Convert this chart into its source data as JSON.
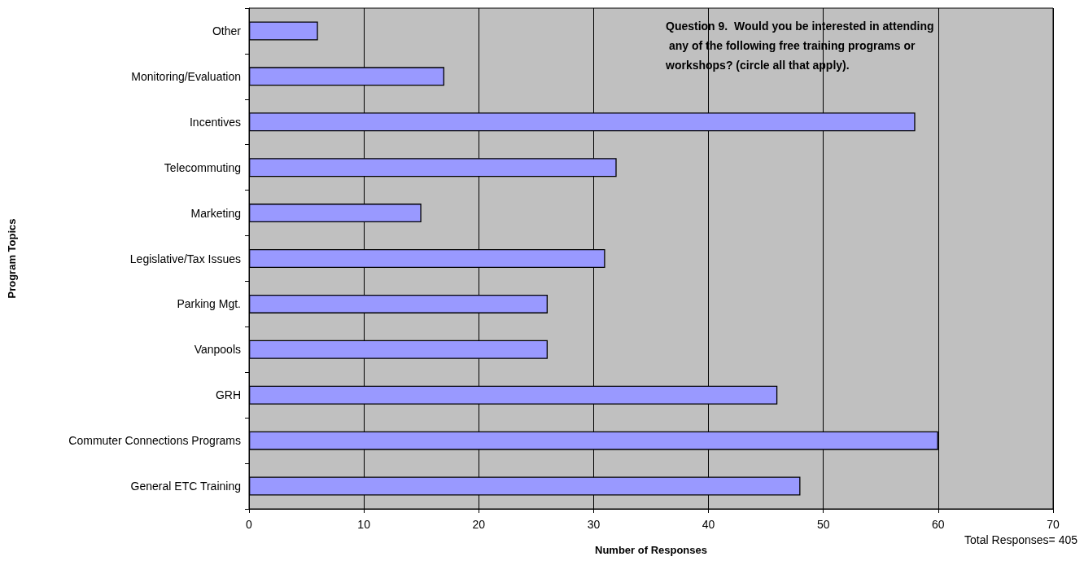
{
  "chart_data": {
    "type": "bar",
    "orientation": "horizontal",
    "xlabel": "Number of Responses",
    "ylabel": "Program Topics",
    "categories": [
      "Other",
      "Monitoring/Evaluation",
      "Incentives",
      "Telecommuting",
      "Marketing",
      "Legislative/Tax Issues",
      "Parking Mgt.",
      "Vanpools",
      "GRH",
      "Commuter Connections Programs",
      "General ETC Training"
    ],
    "values": [
      6,
      17,
      58,
      32,
      15,
      31,
      26,
      26,
      46,
      60,
      48
    ],
    "color": "#9999ff",
    "xlim": [
      0,
      70
    ],
    "xticks": [
      0,
      10,
      20,
      30,
      40,
      50,
      60,
      70
    ],
    "grid": "x",
    "annotations": [
      "Question 9.  Would you be interested in attending any of the following free training programs or workshops? (circle all that apply).",
      "Total Responses= 405"
    ]
  }
}
